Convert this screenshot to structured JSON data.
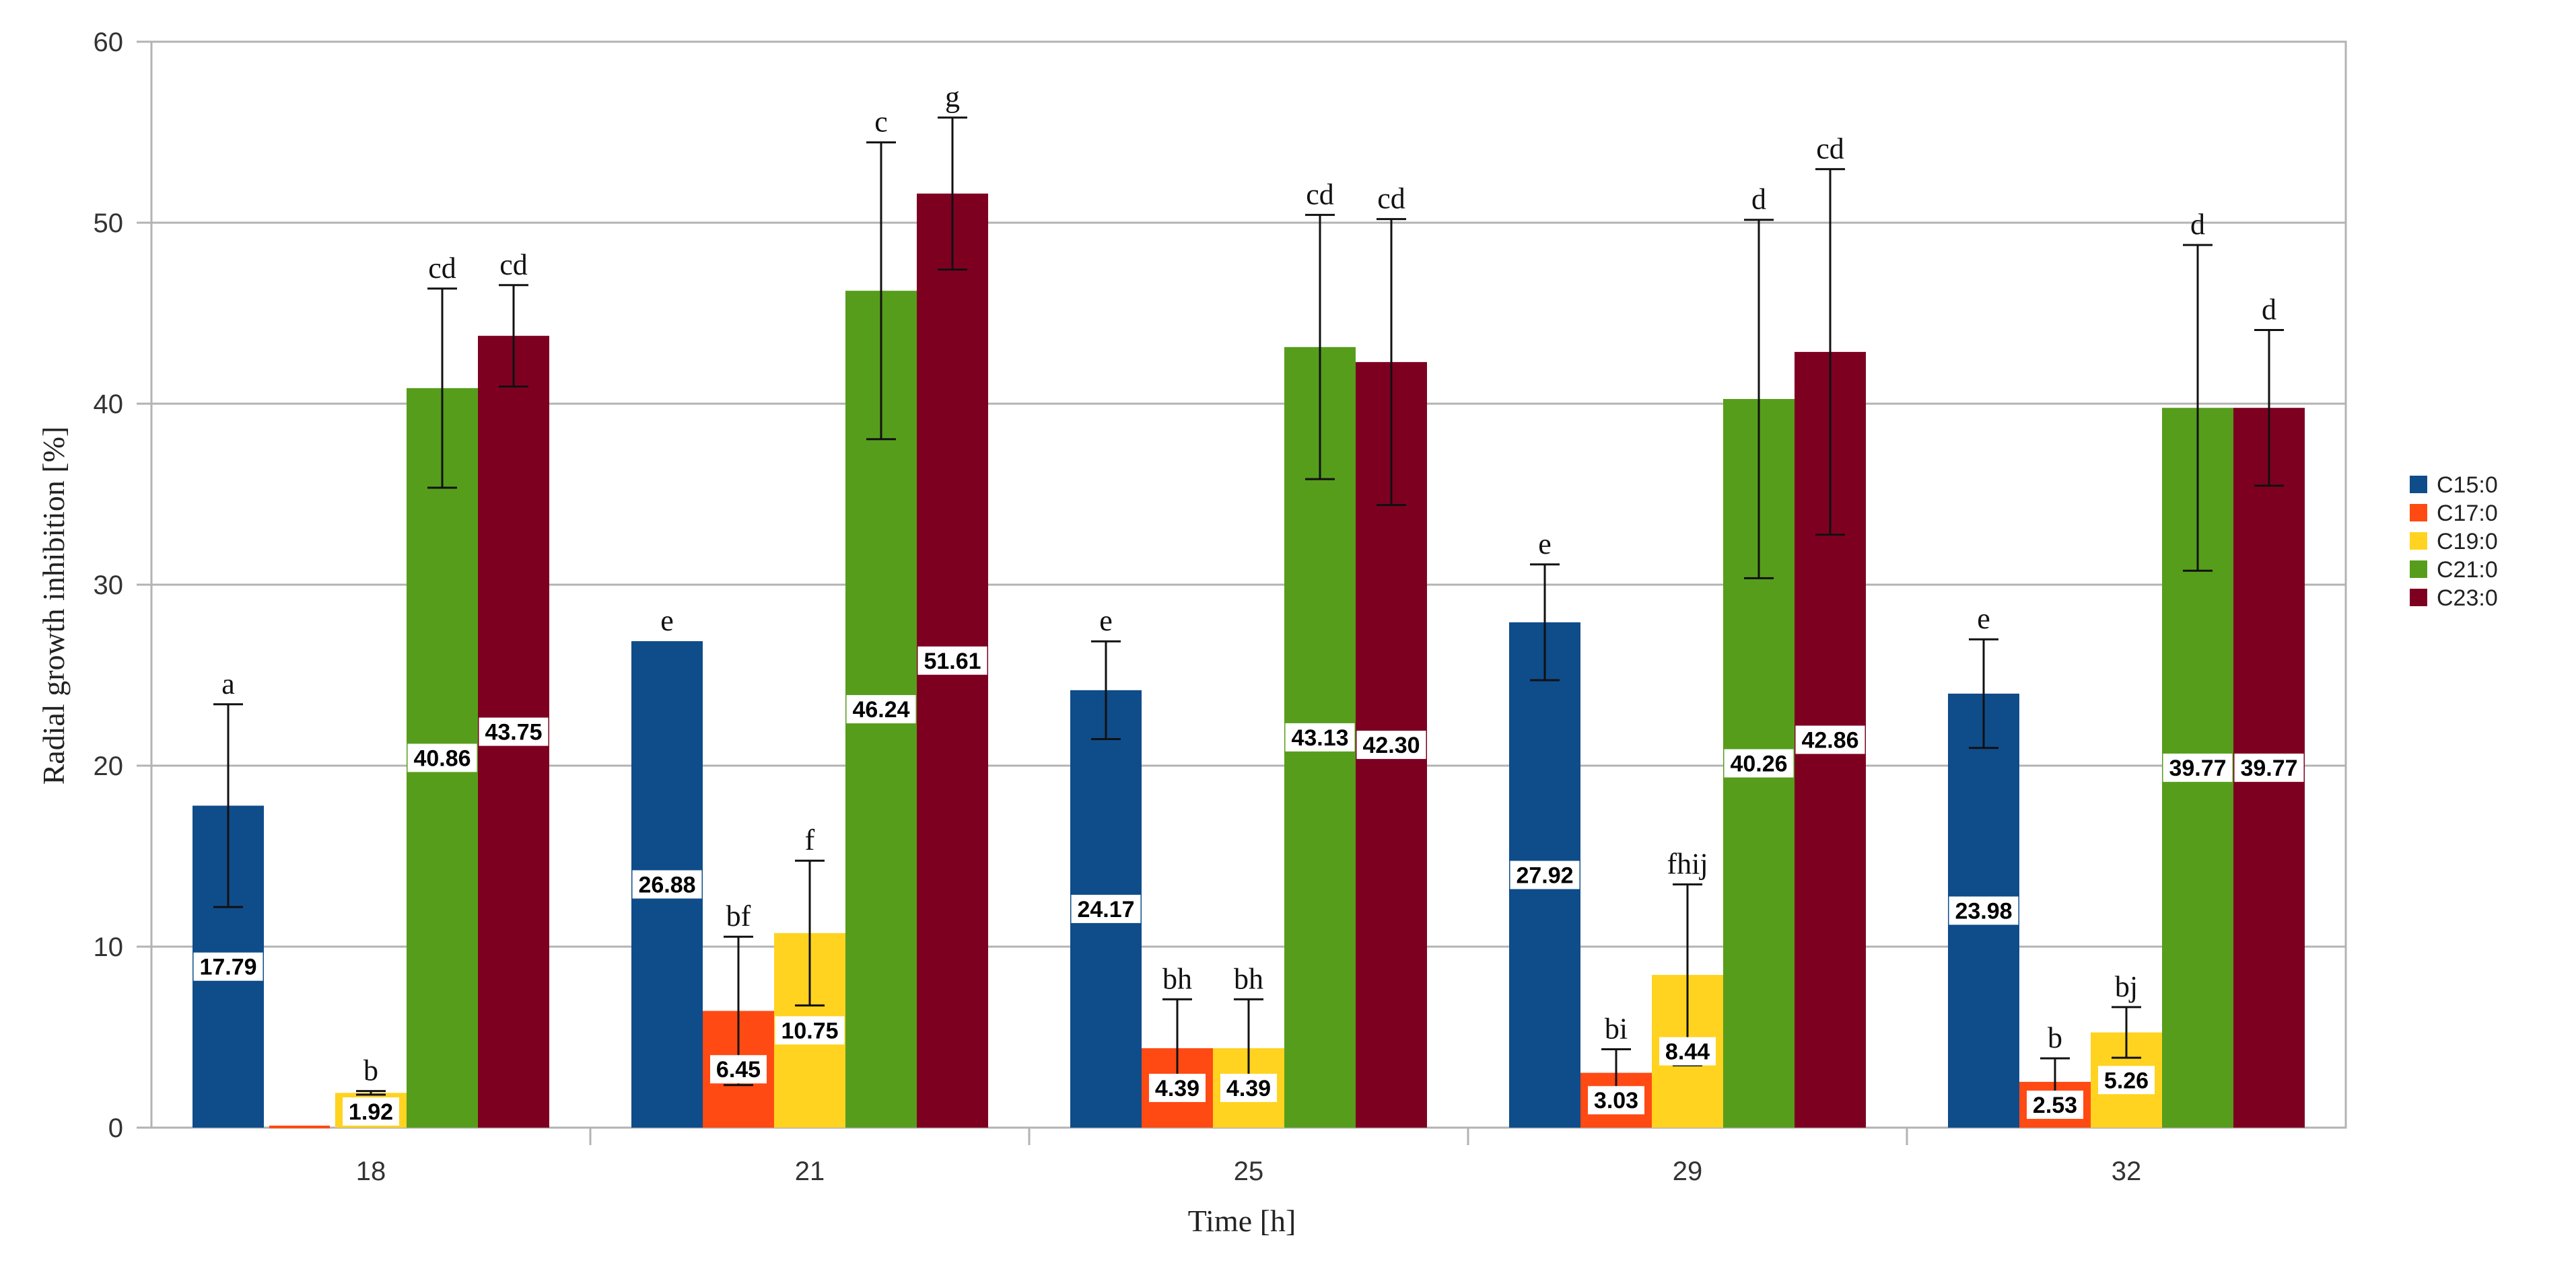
{
  "chart_data": {
    "type": "bar",
    "title": "",
    "xlabel": "Time [h]",
    "ylabel": "Radial growth inhibition [%]",
    "ylim": [
      0,
      60
    ],
    "yticks": [
      "0",
      "10",
      "20",
      "30",
      "40",
      "50",
      "60"
    ],
    "grid": true,
    "legend_position": "right",
    "categories": [
      "18",
      "21",
      "25",
      "29",
      "32"
    ],
    "series": [
      {
        "name": "C15:0",
        "color": "#0f4c8a",
        "values": [
          17.79,
          26.88,
          24.17,
          27.92,
          23.98
        ],
        "labels": [
          "17.79",
          "26.88",
          "24.17",
          "27.92",
          "23.98"
        ],
        "error": [
          5.6,
          0,
          2.7,
          3.2,
          3.0
        ],
        "letters": [
          "a",
          "e",
          "e",
          "e",
          "e"
        ]
      },
      {
        "name": "C17:0",
        "color": "#ff4a14",
        "values": [
          0,
          6.45,
          4.39,
          3.03,
          2.53
        ],
        "labels": [
          "",
          "6.45",
          "4.39",
          "3.03",
          "2.53"
        ],
        "error": [
          0,
          4.1,
          2.7,
          1.3,
          1.3
        ],
        "letters": [
          "",
          "bf",
          "bh",
          "bi",
          "b"
        ]
      },
      {
        "name": "C19:0",
        "color": "#ffd320",
        "values": [
          1.92,
          10.75,
          4.39,
          8.44,
          5.26
        ],
        "labels": [
          "1.92",
          "10.75",
          "4.39",
          "8.44",
          "5.26"
        ],
        "error": [
          0.1,
          4.0,
          2.7,
          5.0,
          1.4
        ],
        "letters": [
          "b",
          "f",
          "bh",
          "fhij",
          "bj"
        ]
      },
      {
        "name": "C21:0",
        "color": "#579d1c",
        "values": [
          40.86,
          46.24,
          43.13,
          40.26,
          39.77
        ],
        "labels": [
          "40.86",
          "46.24",
          "43.13",
          "40.26",
          "39.77"
        ],
        "error": [
          5.5,
          8.2,
          7.3,
          9.9,
          9.0
        ],
        "letters": [
          "cd",
          "c",
          "cd",
          "d",
          "d"
        ]
      },
      {
        "name": "C23:0",
        "color": "#7e0021",
        "values": [
          43.75,
          51.61,
          42.3,
          42.86,
          39.77
        ],
        "labels": [
          "43.75",
          "51.61",
          "42.30",
          "42.86",
          "39.77"
        ],
        "error": [
          2.8,
          4.2,
          7.9,
          10.1,
          4.3
        ],
        "letters": [
          "cd",
          "g",
          "cd",
          "cd",
          "d"
        ]
      }
    ]
  }
}
